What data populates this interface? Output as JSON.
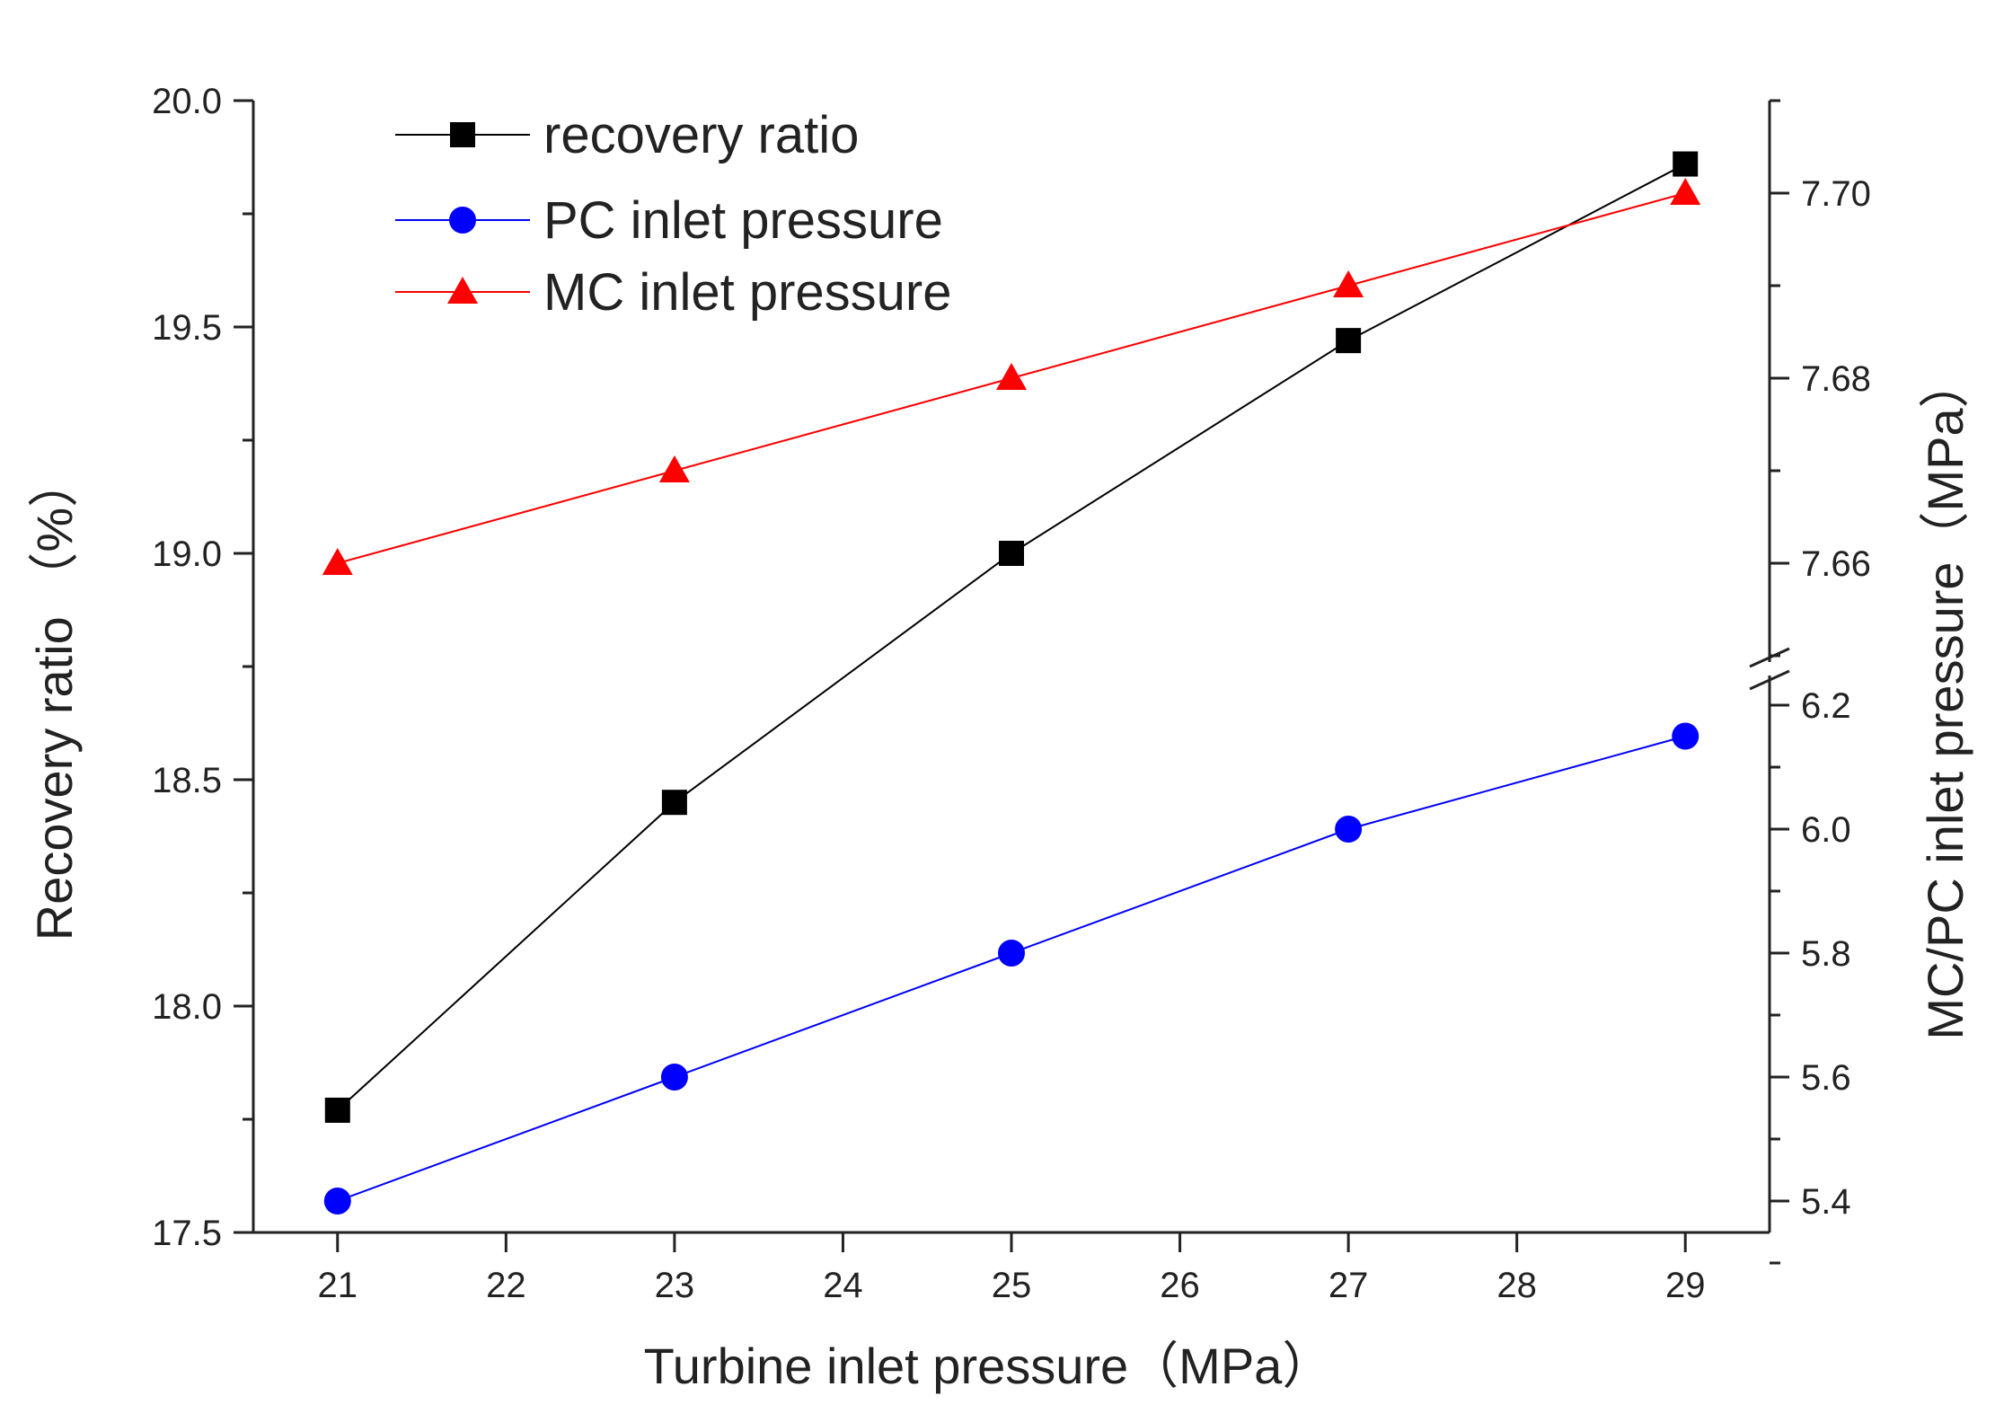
{
  "chart_data": {
    "type": "line",
    "xlabel": "Turbine inlet pressure（MPa）",
    "ylabel_left": "Recovery ratio （%）",
    "ylabel_right": "MC/PC inlet pressure（MPa）",
    "x": [
      21,
      23,
      25,
      27,
      29
    ],
    "x_ticks": [
      "21",
      "22",
      "23",
      "24",
      "25",
      "26",
      "27",
      "28",
      "29"
    ],
    "xlim": [
      20.5,
      29.5
    ],
    "left_axis": {
      "ylim": [
        17.5,
        20.0
      ],
      "ticks": [
        "17.5",
        "18.0",
        "18.5",
        "19.0",
        "19.5",
        "20.0"
      ]
    },
    "right_axis": {
      "broken": true,
      "lower": {
        "ylim": [
          5.4,
          6.2
        ],
        "ticks": [
          "5.4",
          "5.6",
          "5.8",
          "6.0",
          "6.2"
        ]
      },
      "upper": {
        "ylim": [
          7.65,
          7.71
        ],
        "ticks": [
          "7.66",
          "7.68",
          "7.70"
        ]
      }
    },
    "series": [
      {
        "name": "recovery ratio",
        "axis": "left",
        "marker": "square",
        "color": "#000000",
        "values": [
          17.77,
          18.45,
          19.0,
          19.47,
          19.86
        ]
      },
      {
        "name": "PC inlet pressure",
        "axis": "right-lower",
        "marker": "circle",
        "color": "#0000ff",
        "values": [
          5.4,
          5.6,
          5.8,
          6.0,
          6.15
        ]
      },
      {
        "name": "MC inlet pressure",
        "axis": "right-upper",
        "marker": "triangle",
        "color": "#ff0000",
        "values": [
          7.66,
          7.67,
          7.68,
          7.69,
          7.7
        ]
      }
    ],
    "legend_position": "top-left",
    "grid": false
  }
}
